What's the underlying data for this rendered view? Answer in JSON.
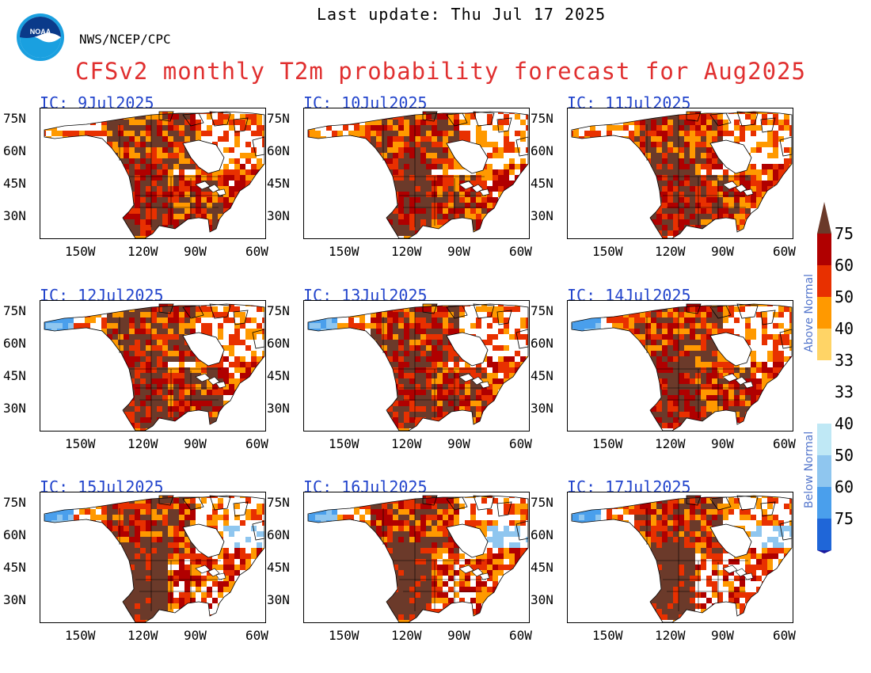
{
  "header": {
    "last_update": "Last update: Thu Jul 17 2025",
    "agency": "NWS/NCEP/CPC",
    "title": "CFSv2 monthly T2m probability forecast for Aug2025",
    "logo_text": "NOAA"
  },
  "map_axes": {
    "lat_labels": [
      "75N",
      "60N",
      "45N",
      "30N"
    ],
    "lon_labels": [
      "150W",
      "120W",
      "90W",
      "60W"
    ]
  },
  "panels": [
    {
      "ic": "IC: 9Jul2025"
    },
    {
      "ic": "IC: 10Jul2025"
    },
    {
      "ic": "IC: 11Jul2025"
    },
    {
      "ic": "IC: 12Jul2025"
    },
    {
      "ic": "IC: 13Jul2025"
    },
    {
      "ic": "IC: 14Jul2025"
    },
    {
      "ic": "IC: 15Jul2025"
    },
    {
      "ic": "IC: 16Jul2025"
    },
    {
      "ic": "IC: 17Jul2025"
    }
  ],
  "legend": {
    "above_label": "Above Normal",
    "below_label": "Below Normal",
    "ticks": [
      "75",
      "60",
      "50",
      "40",
      "33",
      "33",
      "40",
      "50",
      "60",
      "75"
    ],
    "above_colors": [
      "#6b3a2a",
      "#b00000",
      "#e83000",
      "#ff9900",
      "#ffd466"
    ],
    "near_color": "#ffffff",
    "below_colors": [
      "#bfe8f5",
      "#8fc6ef",
      "#4a9fec",
      "#1f66d8",
      "#1a1a9e"
    ]
  },
  "colors": {
    "title": "#e03030",
    "ic_label": "#2244cc",
    "land_outline": "#000000"
  }
}
